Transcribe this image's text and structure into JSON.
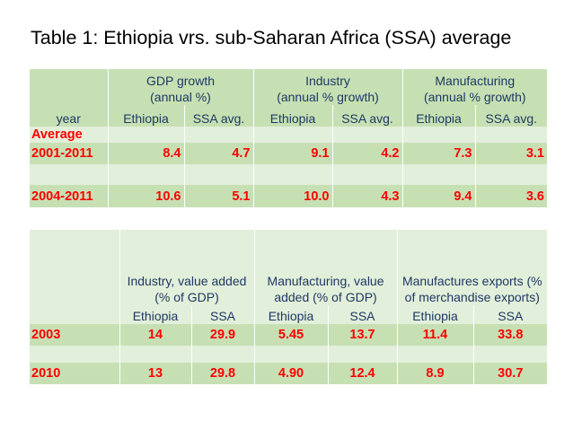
{
  "title": "Table 1: Ethiopia vrs. sub-Saharan Africa  (SSA) average",
  "table1": {
    "groups": [
      {
        "line1": "GDP growth",
        "line2": "(annual %)"
      },
      {
        "line1": "Industry",
        "line2": "(annual % growth)"
      },
      {
        "line1": "Manufacturing",
        "line2": "(annual % growth)"
      }
    ],
    "year_label": "year",
    "sub_headers": [
      "Ethiopia",
      "SSA avg.",
      "Ethiopia",
      "SSA avg.",
      "Ethiopia",
      "SSA avg."
    ],
    "average_label": "Average",
    "rows": [
      {
        "period": "2001-2011",
        "values": [
          "8.4",
          "4.7",
          "9.1",
          "4.2",
          "7.3",
          "3.1"
        ]
      },
      {
        "period": "2004-2011",
        "values": [
          "10.6",
          "5.1",
          "10.0",
          "4.3",
          "9.4",
          "3.6"
        ]
      }
    ]
  },
  "table2": {
    "groups": [
      "Industry, value added (% of GDP)",
      "Manufacturing, value added (% of GDP)",
      "Manufactures exports (% of merchandise exports)"
    ],
    "sub_headers": [
      "Ethiopia",
      "SSA",
      "Ethiopia",
      "SSA",
      "Ethiopia",
      "SSA"
    ],
    "rows": [
      {
        "year": "2003",
        "values": [
          "14",
          "29.9",
          "5.45",
          "13.7",
          "11.4",
          "33.8"
        ]
      },
      {
        "year": "2010",
        "values": [
          "13",
          "29.8",
          "4.90",
          "12.4",
          "8.9",
          "30.7"
        ]
      }
    ]
  },
  "colors": {
    "dark_band": "#c6e0b4",
    "light_band": "#e2efda",
    "value_red": "#ff0000",
    "header_text": "#1f3864"
  }
}
